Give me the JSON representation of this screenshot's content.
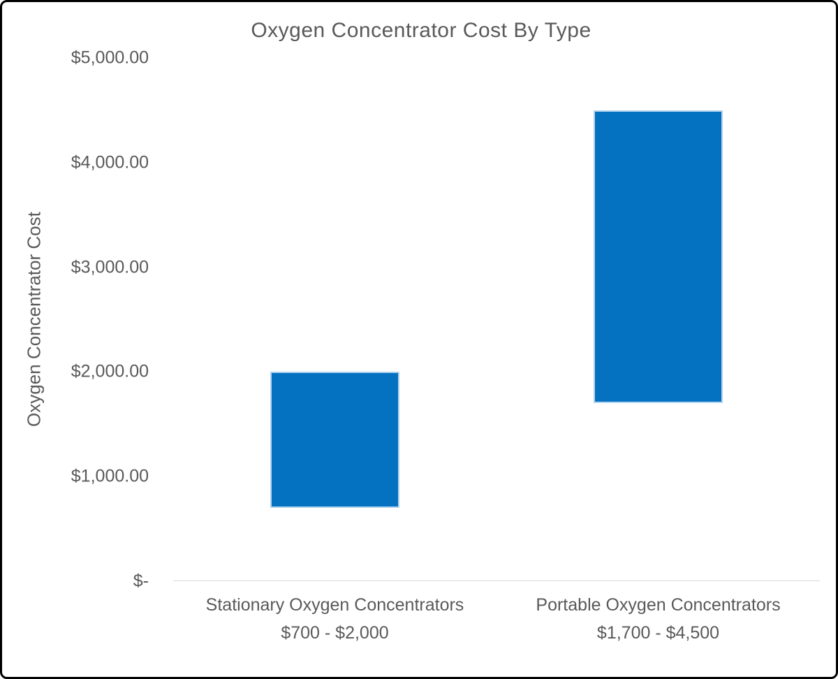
{
  "chart_data": {
    "type": "bar",
    "subtype": "floating-range-columns",
    "title": "Oxygen Concentrator Cost By Type",
    "xlabel": "",
    "ylabel": "Oxygen Concentrator Cost",
    "ylim": [
      0,
      5000
    ],
    "grid": false,
    "legend": false,
    "yticks": [
      {
        "value": 0,
        "label": "$-"
      },
      {
        "value": 1000,
        "label": "$1,000.00"
      },
      {
        "value": 2000,
        "label": "$2,000.00"
      },
      {
        "value": 3000,
        "label": "$3,000.00"
      },
      {
        "value": 4000,
        "label": "$4,000.00"
      },
      {
        "value": 5000,
        "label": "$5,000.00"
      }
    ],
    "categories": [
      {
        "name": "Stationary Oxygen Concentrators",
        "range_label": "$700 - $2,000",
        "low": 700,
        "high": 2000
      },
      {
        "name": "Portable Oxygen Concentrators",
        "range_label": "$1,700 - $4,500",
        "low": 1700,
        "high": 4500
      }
    ],
    "colors": {
      "bar_fill": "#0471C1",
      "bar_border": "#B3D3EE",
      "axis_line": "#D9D9D9",
      "text": "#595959"
    }
  }
}
